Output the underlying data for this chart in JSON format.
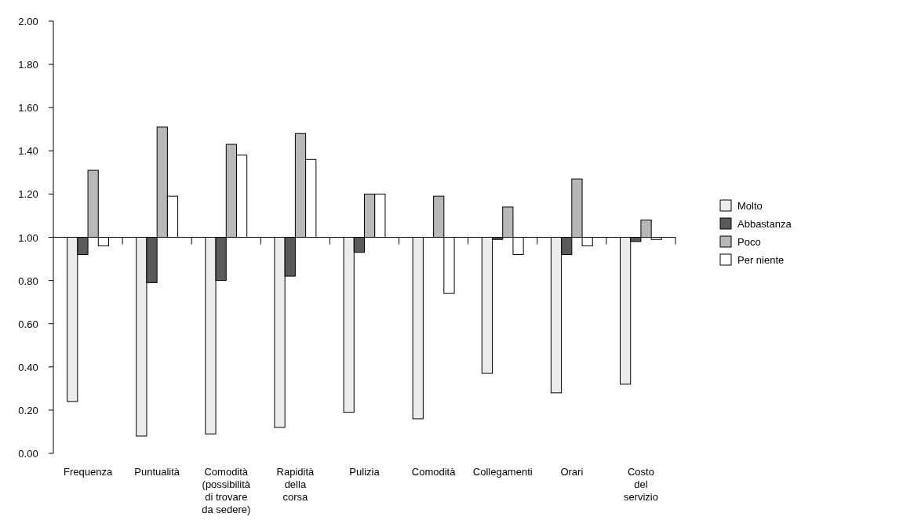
{
  "chart_data": {
    "type": "bar",
    "categories": [
      "Frequenza",
      "Puntualità",
      "Comodità\n(possibilità\ndi trovare\nda sedere)",
      "Rapidità\ndella\ncorsa",
      "Pulizia",
      "Comodità",
      "Collegamenti",
      "Orari",
      "Costo\ndel\nservizio"
    ],
    "series": [
      {
        "name": "Molto",
        "color": "#ececec",
        "base": [
          1,
          1,
          1,
          1,
          1,
          1,
          1,
          1,
          1
        ],
        "values": [
          -0.76,
          -0.92,
          -0.91,
          -0.88,
          -0.81,
          -0.84,
          -0.63,
          -0.72,
          -0.68
        ]
      },
      {
        "name": "Abbastanza",
        "color": "#5a5a5a",
        "base": [
          1,
          1,
          1,
          1,
          1,
          null,
          1,
          1,
          1
        ],
        "values": [
          -0.08,
          -0.21,
          -0.2,
          -0.18,
          -0.07,
          null,
          -0.01,
          -0.08,
          -0.02
        ]
      },
      {
        "name": "Poco",
        "color": "#b8b8b8",
        "base": [
          1,
          1,
          1,
          1,
          1,
          1,
          1,
          1,
          1
        ],
        "values": [
          0.31,
          0.51,
          0.43,
          0.48,
          0.2,
          0.19,
          0.14,
          0.27,
          0.08
        ]
      },
      {
        "name": "Per niente",
        "color": "#ffffff",
        "base": [
          1,
          1,
          1,
          1,
          1,
          1,
          1,
          1,
          1
        ],
        "values": [
          -0.04,
          0.19,
          0.38,
          0.36,
          0.2,
          -0.26,
          -0.08,
          -0.04,
          -0.01
        ]
      }
    ],
    "ylim": [
      0,
      2
    ],
    "yticks": [
      {
        "value": 0,
        "label": "0.00"
      },
      {
        "value": 0.2,
        "label": "0.20"
      },
      {
        "value": 0.4,
        "label": "0.40"
      },
      {
        "value": 0.6,
        "label": "0.60"
      },
      {
        "value": 0.8,
        "label": "0.80"
      },
      {
        "value": 1,
        "label": "1.00"
      },
      {
        "value": 1.2,
        "label": "1.20"
      },
      {
        "value": 1.4,
        "label": "1.40"
      },
      {
        "value": 1.6,
        "label": "1.60"
      },
      {
        "value": 1.8,
        "label": "1.80"
      },
      {
        "value": 2,
        "label": "2.00"
      }
    ],
    "legend": "right"
  }
}
